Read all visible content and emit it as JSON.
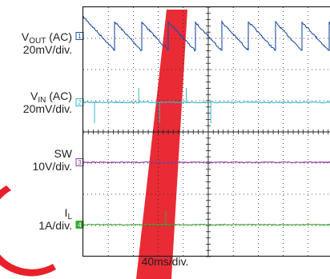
{
  "chart_data": {
    "type": "line",
    "time_per_div": "40ms/div.",
    "channels": [
      {
        "id": "1",
        "name_main": "V",
        "name_sub": "OUT",
        "name_suffix": " (AC)",
        "scale": "20mV/div.",
        "color": "#1f4fa3",
        "waveform": "sawtooth",
        "ramp_period_div": 1.07,
        "first_rise_div": 1.25,
        "jump_amplitude_div": 0.92
      },
      {
        "id": "2",
        "name_main": "V",
        "name_sub": "IN",
        "name_suffix": " (AC)",
        "scale": "20mV/div.",
        "color": "#35b7c9",
        "waveform": "noise-with-spikes",
        "spike_positions_div": [
          0.45,
          2.22,
          3.05,
          4.12,
          5.1
        ],
        "spike_down_div": [
          0.45,
          3.05,
          5.1
        ]
      },
      {
        "id": "3",
        "name_main": "SW",
        "name_sub": "",
        "name_suffix": "",
        "scale": "10V/div.",
        "color": "#8e3c9f",
        "waveform": "flat"
      },
      {
        "id": "4",
        "name_main": "I",
        "name_sub": "L",
        "name_suffix": "",
        "scale": "1A/div.",
        "color": "#3aa935",
        "waveform": "flat-with-spike",
        "spike_positions_div": [
          3.3
        ]
      }
    ],
    "divisions": {
      "x": 10,
      "y": 8
    },
    "grid": true,
    "watermark_color": "#e8202a"
  }
}
